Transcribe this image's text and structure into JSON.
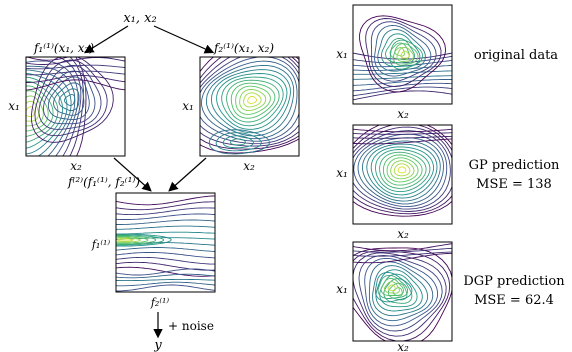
{
  "diagram": {
    "input_label": "x₁, x₂",
    "f11_label": "f₁⁽¹⁾(x₁, x₂)",
    "f21_label": "f₂⁽¹⁾(x₁, x₂)",
    "f2_label": "f⁽²⁾(f₁⁽¹⁾, f₂⁽¹⁾)",
    "axis_x1": "x₁",
    "axis_x2": "x₂",
    "axis_f1": "f₁⁽¹⁾",
    "axis_f2": "f₂⁽¹⁾",
    "noise_label": "+ noise",
    "output_label": "y"
  },
  "panels": {
    "original": {
      "caption": "original data"
    },
    "gp": {
      "caption_line1": "GP prediction",
      "caption_line2": "MSE = 138"
    },
    "dgp": {
      "caption_line1": "DGP prediction",
      "caption_line2": "MSE = 62.4"
    }
  },
  "colors": {
    "viridis": [
      "#440154",
      "#3b528b",
      "#21918c",
      "#5ec962",
      "#fde725"
    ],
    "frame": "#000000"
  }
}
